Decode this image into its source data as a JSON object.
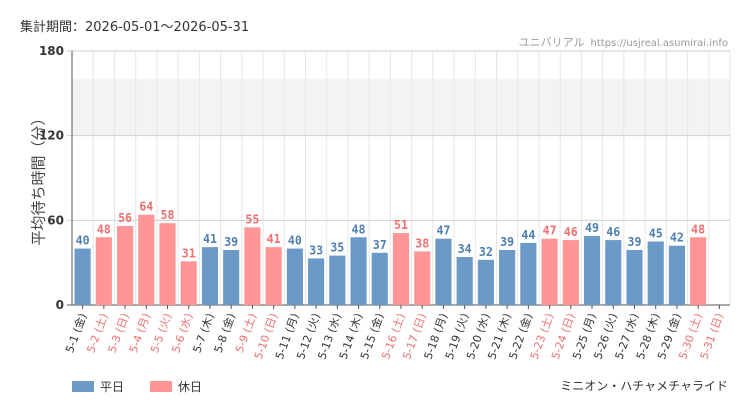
{
  "header": {
    "period_label": "集計期間：2026-05-01～2026-05-31",
    "credit_name": "ユニバリアル",
    "credit_url": "https://usjreal.asumirai.info"
  },
  "footer": {
    "attraction": "ミニオン・ハチャメチャライド"
  },
  "colors": {
    "weekday": "#6b9ac8",
    "holiday": "#ff9595",
    "weekday_text": "#4f7fb0",
    "holiday_text": "#ee7070",
    "axis_text": "#333333",
    "band": "#f3f3f3",
    "grid": "#e6e6e6"
  },
  "chart_data": {
    "type": "bar",
    "ylabel": "平均待ち時間（分）",
    "ylim": [
      0,
      180
    ],
    "yticks": [
      "0",
      "60",
      "120",
      "180"
    ],
    "shaded_band": [
      120,
      160
    ],
    "legend": [
      {
        "label": "平日",
        "type": "weekday"
      },
      {
        "label": "休日",
        "type": "holiday"
      }
    ],
    "categories": [
      "5-1 (金)",
      "5-2 (土)",
      "5-3 (日)",
      "5-4 (月)",
      "5-5 (火)",
      "5-6 (水)",
      "5-7 (木)",
      "5-8 (金)",
      "5-9 (土)",
      "5-10 (日)",
      "5-11 (月)",
      "5-12 (火)",
      "5-13 (水)",
      "5-14 (木)",
      "5-15 (金)",
      "5-16 (土)",
      "5-17 (日)",
      "5-18 (月)",
      "5-19 (火)",
      "5-20 (水)",
      "5-21 (木)",
      "5-22 (金)",
      "5-23 (土)",
      "5-24 (日)",
      "5-25 (月)",
      "5-26 (火)",
      "5-27 (水)",
      "5-28 (木)",
      "5-29 (金)",
      "5-30 (土)",
      "5-31 (日)"
    ],
    "values": [
      40,
      48,
      56,
      64,
      58,
      31,
      41,
      39,
      55,
      41,
      40,
      33,
      35,
      48,
      37,
      51,
      38,
      47,
      34,
      32,
      39,
      44,
      47,
      46,
      49,
      46,
      39,
      45,
      42,
      48,
      null
    ],
    "day_types": [
      "weekday",
      "holiday",
      "holiday",
      "holiday",
      "holiday",
      "holiday",
      "weekday",
      "weekday",
      "holiday",
      "holiday",
      "weekday",
      "weekday",
      "weekday",
      "weekday",
      "weekday",
      "holiday",
      "holiday",
      "weekday",
      "weekday",
      "weekday",
      "weekday",
      "weekday",
      "holiday",
      "holiday",
      "weekday",
      "weekday",
      "weekday",
      "weekday",
      "weekday",
      "holiday",
      "holiday"
    ]
  }
}
